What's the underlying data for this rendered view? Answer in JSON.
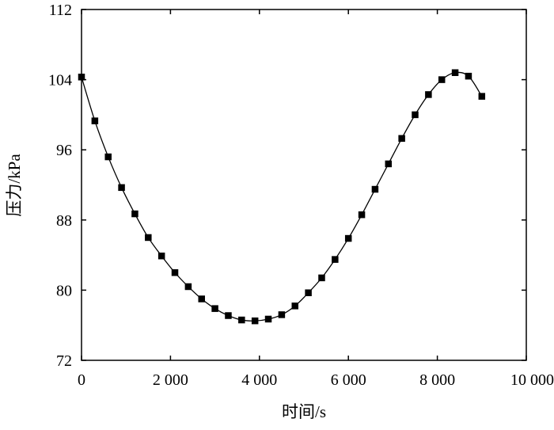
{
  "chart_data": {
    "type": "line",
    "title": "",
    "xlabel": "时间/s",
    "ylabel": "压力/kPa",
    "xlim": [
      0,
      10000
    ],
    "ylim": [
      72,
      112
    ],
    "x_ticks": [
      0,
      2000,
      4000,
      6000,
      8000,
      10000
    ],
    "x_tick_labels": [
      "0",
      "2 000",
      "4 000",
      "6 000",
      "8 000",
      "10 000"
    ],
    "y_ticks": [
      72,
      80,
      88,
      96,
      104,
      112
    ],
    "y_tick_labels": [
      "72",
      "80",
      "88",
      "96",
      "104",
      "112"
    ],
    "grid": false,
    "legend": "none",
    "series": [
      {
        "marker": "square",
        "line_color": "#000000",
        "x": [
          0,
          300,
          600,
          900,
          1200,
          1500,
          1800,
          2100,
          2400,
          2700,
          3000,
          3300,
          3600,
          3900,
          4200,
          4500,
          4800,
          5100,
          5400,
          5700,
          6000,
          6300,
          6600,
          6900,
          7200,
          7500,
          7800,
          8100,
          8400,
          8700,
          9000
        ],
        "y": [
          104.3,
          99.3,
          95.2,
          91.7,
          88.7,
          86.0,
          83.9,
          82.0,
          80.4,
          79.0,
          77.9,
          77.1,
          76.6,
          76.5,
          76.7,
          77.2,
          78.2,
          79.7,
          81.4,
          83.5,
          85.9,
          88.6,
          91.5,
          94.4,
          97.3,
          100.0,
          102.3,
          104.0,
          104.8,
          104.4,
          102.1
        ]
      }
    ]
  }
}
